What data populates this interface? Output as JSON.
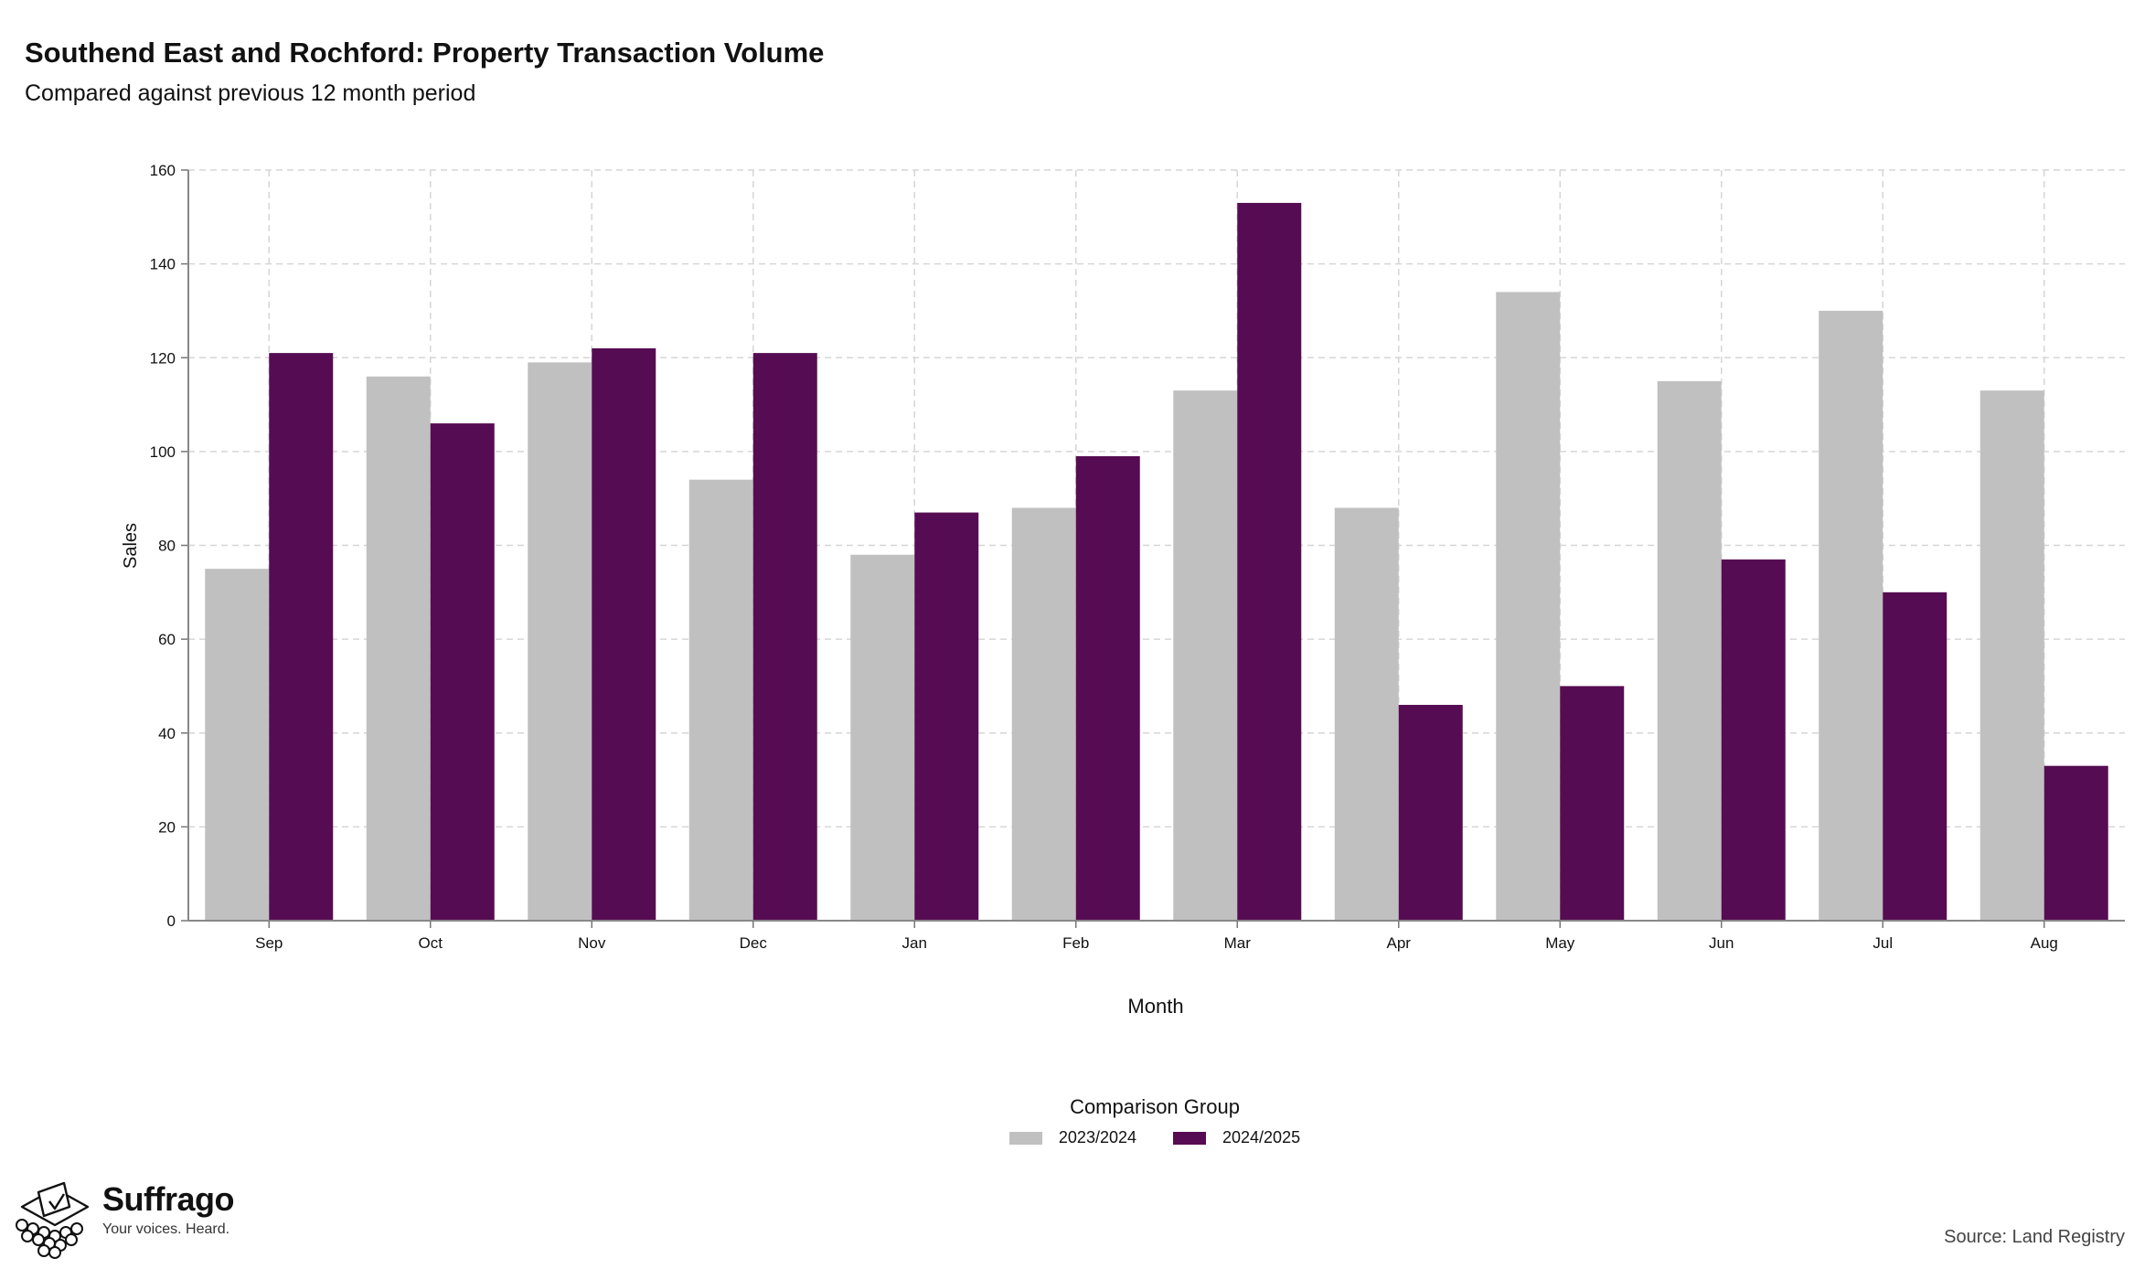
{
  "title": "Southend East and Rochford: Property Transaction Volume",
  "subtitle": "Compared against previous 12 month period",
  "legend": {
    "title": "Comparison Group",
    "items": [
      {
        "label": "2023/2024",
        "color": "#c0c0c0"
      },
      {
        "label": "2024/2025",
        "color": "#560c52"
      }
    ]
  },
  "branding": {
    "name": "Suffrago",
    "tagline": "Your voices. Heard."
  },
  "source": "Source: Land Registry",
  "chart_data": {
    "type": "bar",
    "xlabel": "Month",
    "ylabel": "Sales",
    "ylim": [
      0,
      160
    ],
    "yticks": [
      0,
      20,
      40,
      60,
      80,
      100,
      120,
      140,
      160
    ],
    "grid": true,
    "legend_position": "bottom",
    "categories": [
      "Sep",
      "Oct",
      "Nov",
      "Dec",
      "Jan",
      "Feb",
      "Mar",
      "Apr",
      "May",
      "Jun",
      "Jul",
      "Aug"
    ],
    "series": [
      {
        "name": "2023/2024",
        "color": "#c0c0c0",
        "values": [
          75,
          116,
          119,
          94,
          78,
          88,
          113,
          88,
          134,
          115,
          130,
          113
        ]
      },
      {
        "name": "2024/2025",
        "color": "#560c52",
        "values": [
          121,
          106,
          122,
          121,
          87,
          99,
          153,
          46,
          50,
          77,
          70,
          33
        ]
      }
    ]
  }
}
